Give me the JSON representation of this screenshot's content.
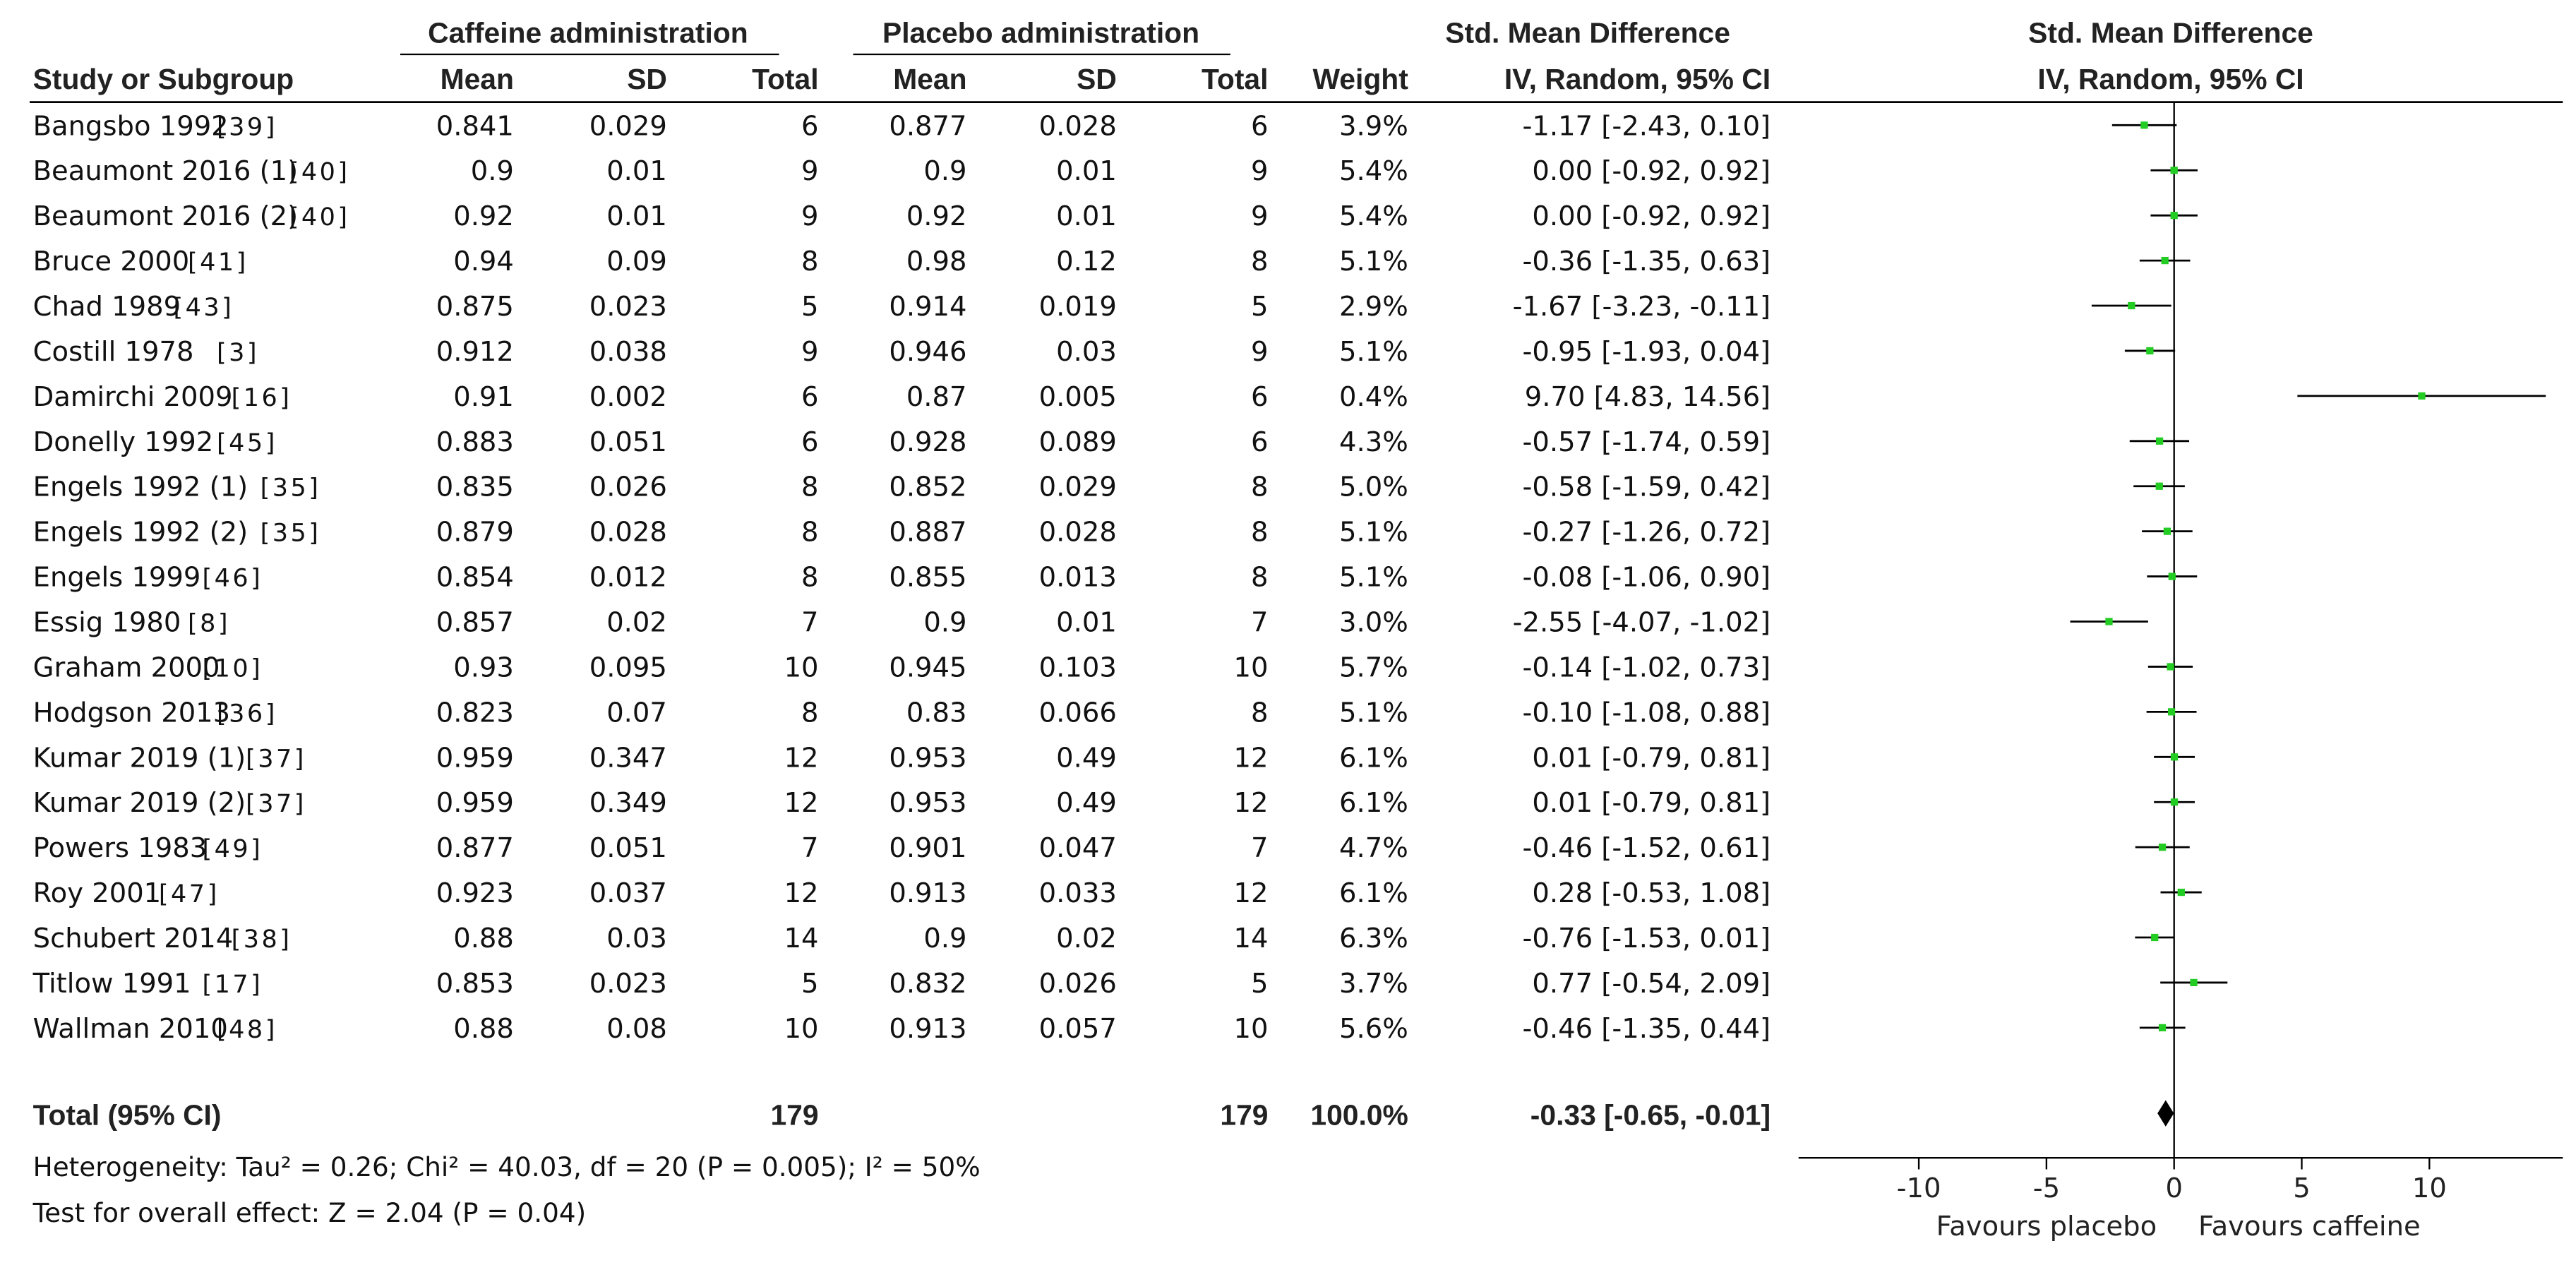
{
  "chart_data": {
    "type": "forest",
    "group_headers": {
      "caffeine": "Caffeine administration",
      "placebo": "Placebo administration",
      "smd": "Std. Mean Difference",
      "plot": "Std. Mean Difference"
    },
    "columns": {
      "study": "Study or Subgroup",
      "mean": "Mean",
      "sd": "SD",
      "total": "Total",
      "weight": "Weight",
      "ci": "IV, Random, 95% CI",
      "plot_ci": "IV, Random, 95% CI"
    },
    "studies": [
      {
        "name": "Bangsbo 1992",
        "ref": "[39]",
        "caf_mean": "0.841",
        "caf_sd": "0.029",
        "caf_n": "6",
        "pla_mean": "0.877",
        "pla_sd": "0.028",
        "pla_n": "6",
        "weight": "3.9%",
        "ci_text": "-1.17 [-2.43, 0.10]",
        "est": -1.17,
        "lo": -2.43,
        "hi": 0.1
      },
      {
        "name": "Beaumont 2016 (1)",
        "ref": "[40]",
        "caf_mean": "0.9",
        "caf_sd": "0.01",
        "caf_n": "9",
        "pla_mean": "0.9",
        "pla_sd": "0.01",
        "pla_n": "9",
        "weight": "5.4%",
        "ci_text": "0.00 [-0.92, 0.92]",
        "est": 0.0,
        "lo": -0.92,
        "hi": 0.92
      },
      {
        "name": "Beaumont 2016 (2)",
        "ref": "[40]",
        "caf_mean": "0.92",
        "caf_sd": "0.01",
        "caf_n": "9",
        "pla_mean": "0.92",
        "pla_sd": "0.01",
        "pla_n": "9",
        "weight": "5.4%",
        "ci_text": "0.00 [-0.92, 0.92]",
        "est": 0.0,
        "lo": -0.92,
        "hi": 0.92
      },
      {
        "name": "Bruce 2000",
        "ref": "[41]",
        "caf_mean": "0.94",
        "caf_sd": "0.09",
        "caf_n": "8",
        "pla_mean": "0.98",
        "pla_sd": "0.12",
        "pla_n": "8",
        "weight": "5.1%",
        "ci_text": "-0.36 [-1.35, 0.63]",
        "est": -0.36,
        "lo": -1.35,
        "hi": 0.63
      },
      {
        "name": "Chad 1989",
        "ref": "[43]",
        "caf_mean": "0.875",
        "caf_sd": "0.023",
        "caf_n": "5",
        "pla_mean": "0.914",
        "pla_sd": "0.019",
        "pla_n": "5",
        "weight": "2.9%",
        "ci_text": "-1.67 [-3.23, -0.11]",
        "est": -1.67,
        "lo": -3.23,
        "hi": -0.11
      },
      {
        "name": "Costill 1978",
        "ref": "[3]",
        "caf_mean": "0.912",
        "caf_sd": "0.038",
        "caf_n": "9",
        "pla_mean": "0.946",
        "pla_sd": "0.03",
        "pla_n": "9",
        "weight": "5.1%",
        "ci_text": "-0.95 [-1.93, 0.04]",
        "est": -0.95,
        "lo": -1.93,
        "hi": 0.04
      },
      {
        "name": "Damirchi 2009",
        "ref": "[16]",
        "caf_mean": "0.91",
        "caf_sd": "0.002",
        "caf_n": "6",
        "pla_mean": "0.87",
        "pla_sd": "0.005",
        "pla_n": "6",
        "weight": "0.4%",
        "ci_text": "9.70 [4.83, 14.56]",
        "est": 9.7,
        "lo": 4.83,
        "hi": 14.56
      },
      {
        "name": "Donelly 1992",
        "ref": "[45]",
        "caf_mean": "0.883",
        "caf_sd": "0.051",
        "caf_n": "6",
        "pla_mean": "0.928",
        "pla_sd": "0.089",
        "pla_n": "6",
        "weight": "4.3%",
        "ci_text": "-0.57 [-1.74, 0.59]",
        "est": -0.57,
        "lo": -1.74,
        "hi": 0.59
      },
      {
        "name": "Engels 1992 (1)",
        "ref": "[35]",
        "caf_mean": "0.835",
        "caf_sd": "0.026",
        "caf_n": "8",
        "pla_mean": "0.852",
        "pla_sd": "0.029",
        "pla_n": "8",
        "weight": "5.0%",
        "ci_text": "-0.58 [-1.59, 0.42]",
        "est": -0.58,
        "lo": -1.59,
        "hi": 0.42
      },
      {
        "name": "Engels 1992 (2)",
        "ref": "[35]",
        "caf_mean": "0.879",
        "caf_sd": "0.028",
        "caf_n": "8",
        "pla_mean": "0.887",
        "pla_sd": "0.028",
        "pla_n": "8",
        "weight": "5.1%",
        "ci_text": "-0.27 [-1.26, 0.72]",
        "est": -0.27,
        "lo": -1.26,
        "hi": 0.72
      },
      {
        "name": "Engels 1999",
        "ref": "[46]",
        "caf_mean": "0.854",
        "caf_sd": "0.012",
        "caf_n": "8",
        "pla_mean": "0.855",
        "pla_sd": "0.013",
        "pla_n": "8",
        "weight": "5.1%",
        "ci_text": "-0.08 [-1.06, 0.90]",
        "est": -0.08,
        "lo": -1.06,
        "hi": 0.9
      },
      {
        "name": "Essig 1980",
        "ref": "[8]",
        "caf_mean": "0.857",
        "caf_sd": "0.02",
        "caf_n": "7",
        "pla_mean": "0.9",
        "pla_sd": "0.01",
        "pla_n": "7",
        "weight": "3.0%",
        "ci_text": "-2.55 [-4.07, -1.02]",
        "est": -2.55,
        "lo": -4.07,
        "hi": -1.02
      },
      {
        "name": "Graham 2000",
        "ref": "[10]",
        "caf_mean": "0.93",
        "caf_sd": "0.095",
        "caf_n": "10",
        "pla_mean": "0.945",
        "pla_sd": "0.103",
        "pla_n": "10",
        "weight": "5.7%",
        "ci_text": "-0.14 [-1.02, 0.73]",
        "est": -0.14,
        "lo": -1.02,
        "hi": 0.73
      },
      {
        "name": "Hodgson 2013",
        "ref": "[36]",
        "caf_mean": "0.823",
        "caf_sd": "0.07",
        "caf_n": "8",
        "pla_mean": "0.83",
        "pla_sd": "0.066",
        "pla_n": "8",
        "weight": "5.1%",
        "ci_text": "-0.10 [-1.08, 0.88]",
        "est": -0.1,
        "lo": -1.08,
        "hi": 0.88
      },
      {
        "name": "Kumar 2019 (1)",
        "ref": "[37]",
        "caf_mean": "0.959",
        "caf_sd": "0.347",
        "caf_n": "12",
        "pla_mean": "0.953",
        "pla_sd": "0.49",
        "pla_n": "12",
        "weight": "6.1%",
        "ci_text": "0.01 [-0.79, 0.81]",
        "est": 0.01,
        "lo": -0.79,
        "hi": 0.81
      },
      {
        "name": "Kumar 2019 (2)",
        "ref": "[37]",
        "caf_mean": "0.959",
        "caf_sd": "0.349",
        "caf_n": "12",
        "pla_mean": "0.953",
        "pla_sd": "0.49",
        "pla_n": "12",
        "weight": "6.1%",
        "ci_text": "0.01 [-0.79, 0.81]",
        "est": 0.01,
        "lo": -0.79,
        "hi": 0.81
      },
      {
        "name": "Powers 1983",
        "ref": "[49]",
        "caf_mean": "0.877",
        "caf_sd": "0.051",
        "caf_n": "7",
        "pla_mean": "0.901",
        "pla_sd": "0.047",
        "pla_n": "7",
        "weight": "4.7%",
        "ci_text": "-0.46 [-1.52, 0.61]",
        "est": -0.46,
        "lo": -1.52,
        "hi": 0.61
      },
      {
        "name": "Roy 2001",
        "ref": "[47]",
        "caf_mean": "0.923",
        "caf_sd": "0.037",
        "caf_n": "12",
        "pla_mean": "0.913",
        "pla_sd": "0.033",
        "pla_n": "12",
        "weight": "6.1%",
        "ci_text": "0.28 [-0.53, 1.08]",
        "est": 0.28,
        "lo": -0.53,
        "hi": 1.08
      },
      {
        "name": "Schubert 2014",
        "ref": "[38]",
        "caf_mean": "0.88",
        "caf_sd": "0.03",
        "caf_n": "14",
        "pla_mean": "0.9",
        "pla_sd": "0.02",
        "pla_n": "14",
        "weight": "6.3%",
        "ci_text": "-0.76 [-1.53, 0.01]",
        "est": -0.76,
        "lo": -1.53,
        "hi": 0.01
      },
      {
        "name": "Titlow 1991",
        "ref": "[17]",
        "caf_mean": "0.853",
        "caf_sd": "0.023",
        "caf_n": "5",
        "pla_mean": "0.832",
        "pla_sd": "0.026",
        "pla_n": "5",
        "weight": "3.7%",
        "ci_text": "0.77 [-0.54, 2.09]",
        "est": 0.77,
        "lo": -0.54,
        "hi": 2.09
      },
      {
        "name": "Wallman 2010",
        "ref": "[48]",
        "caf_mean": "0.88",
        "caf_sd": "0.08",
        "caf_n": "10",
        "pla_mean": "0.913",
        "pla_sd": "0.057",
        "pla_n": "10",
        "weight": "5.6%",
        "ci_text": "-0.46 [-1.35, 0.44]",
        "est": -0.46,
        "lo": -1.35,
        "hi": 0.44
      }
    ],
    "total": {
      "label": "Total (95% CI)",
      "caf_n": "179",
      "pla_n": "179",
      "weight": "100.0%",
      "ci_text": "-0.33 [-0.65, -0.01]",
      "est": -0.33,
      "lo": -0.65,
      "hi": -0.01
    },
    "heterogeneity": "Heterogeneity: Tau² = 0.26; Chi² = 40.03, df = 20 (P = 0.005); I² = 50%",
    "overall_effect": "Test for overall effect: Z = 2.04 (P = 0.04)",
    "x_axis": {
      "ticks": [
        -10,
        -5,
        0,
        5,
        10
      ],
      "tick_labels": [
        "-10",
        "-5",
        "0",
        "5",
        "10"
      ],
      "range": [
        -14.56,
        14.56
      ]
    },
    "favours_left": "Favours placebo",
    "favours_right": "Favours caffeine",
    "colors": {
      "point": "#22cc22",
      "line": "#000000",
      "diamond": "#000000",
      "text": "#111111"
    }
  }
}
